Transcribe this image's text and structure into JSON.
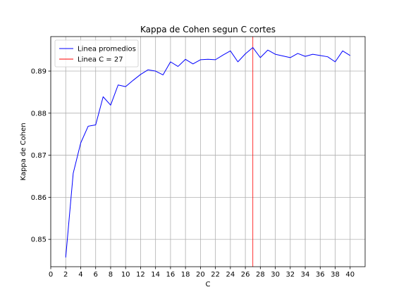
{
  "chart_data": {
    "type": "line",
    "title": "Kappa de Cohen segun C cortes",
    "xlabel": "C",
    "ylabel": "Kappa de Cohen",
    "xlim": [
      0,
      42
    ],
    "ylim": [
      0.8435,
      0.8982
    ],
    "xticks": [
      0,
      2,
      4,
      6,
      8,
      10,
      12,
      14,
      16,
      18,
      20,
      22,
      24,
      26,
      28,
      30,
      32,
      34,
      36,
      38,
      40
    ],
    "xtick_labels": [
      "0",
      "2",
      "4",
      "6",
      "8",
      "10",
      "12",
      "14",
      "16",
      "18",
      "20",
      "22",
      "24",
      "26",
      "28",
      "30",
      "32",
      "34",
      "36",
      "38",
      "40"
    ],
    "yticks": [
      0.85,
      0.86,
      0.87,
      0.88,
      0.89
    ],
    "ytick_labels": [
      "0.85",
      "0.86",
      "0.87",
      "0.88",
      "0.89"
    ],
    "grid": true,
    "legend_position": "top-left",
    "series": [
      {
        "name": "Linea promedios",
        "color": "#0000ff",
        "x": [
          2,
          3,
          4,
          5,
          6,
          7,
          8,
          9,
          10,
          11,
          12,
          13,
          14,
          15,
          16,
          17,
          18,
          19,
          20,
          21,
          22,
          23,
          24,
          25,
          26,
          27,
          28,
          29,
          30,
          31,
          32,
          33,
          34,
          35,
          36,
          37,
          38,
          39,
          40
        ],
        "y": [
          0.8457,
          0.8657,
          0.8729,
          0.8769,
          0.8772,
          0.8839,
          0.8819,
          0.8867,
          0.8863,
          0.8878,
          0.8892,
          0.8903,
          0.89,
          0.8891,
          0.8922,
          0.8911,
          0.8928,
          0.8917,
          0.8927,
          0.8928,
          0.8927,
          0.8938,
          0.8948,
          0.8922,
          0.8941,
          0.8956,
          0.8932,
          0.895,
          0.894,
          0.8936,
          0.8932,
          0.8942,
          0.8935,
          0.894,
          0.8937,
          0.8934,
          0.8922,
          0.8948,
          0.8937
        ]
      }
    ],
    "vlines": [
      {
        "name": "Linea C = 27",
        "x": 27,
        "color": "#ff0000"
      }
    ]
  }
}
